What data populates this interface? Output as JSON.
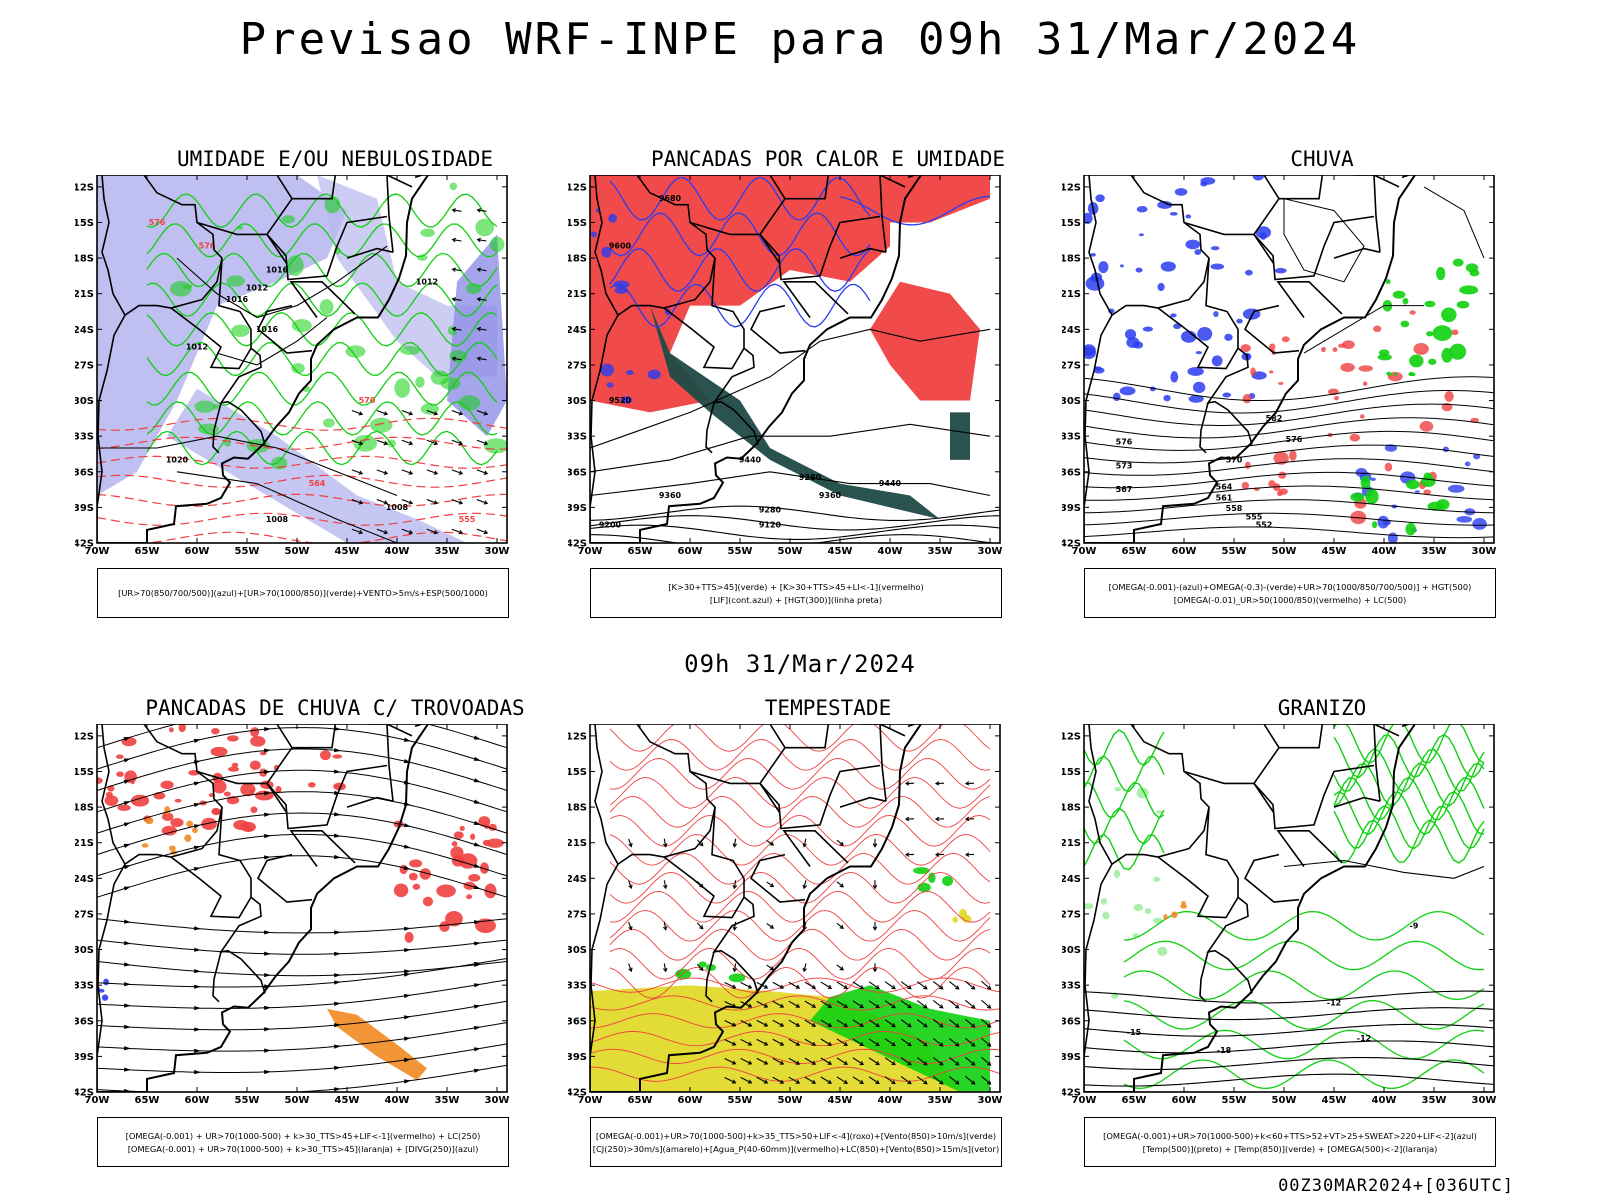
{
  "title": "Previsao WRF-INPE  para 09h 31/Mar/2024",
  "subtitle": "09h 31/Mar/2024",
  "footer": "00Z30MAR2024+[036UTC]",
  "colors": {
    "red": "#f04040",
    "blue": "#2a3cf0",
    "green": "#10d010",
    "lavender": "#b8b8f0",
    "orange": "#f08a20",
    "yellow": "#e0d820",
    "darkteal": "#1f4a46",
    "black": "#000000"
  },
  "axes": {
    "lat_labels": [
      "12S",
      "15S",
      "18S",
      "21S",
      "24S",
      "27S",
      "30S",
      "33S",
      "36S",
      "39S",
      "42S"
    ],
    "lon_labels": [
      "70W",
      "65W",
      "60W",
      "55W",
      "50W",
      "45W",
      "40W",
      "35W",
      "30W"
    ]
  },
  "panels": [
    {
      "title": "UMIDADE E/OU NEBULOSIDADE",
      "legend": [
        "[UR>70(850/700/500)](azul)+[UR>70(1000/850)](verde)+VENTO>5m/s+ESP(500/1000)"
      ]
    },
    {
      "title": "PANCADAS POR CALOR E UMIDADE",
      "legend": [
        "[K>30+TTS>45](verde) + [K>30+TTS>45+LI<-1](vermelho)",
        "[LIF](cont.azul) + [HGT(300)](linha preta)"
      ]
    },
    {
      "title": "CHUVA",
      "legend": [
        "[OMEGA(-0.001)-(azul)+OMEGA(-0.3)-(verde)+UR>70(1000/850/700/500)] + HGT(500)",
        "[OMEGA(-0.01)_UR>50(1000/850)(vermelho) + LC(500)"
      ]
    },
    {
      "title": "PANCADAS DE CHUVA C/ TROVOADAS",
      "legend": [
        "[OMEGA(-0.001) + UR>70(1000-500) + k>30_TTS>45+LIF<-1](vermelho) + LC(250)",
        "[OMEGA(-0.001) + UR>70(1000-500) + k>30_TTS>45](laranja) + [DIVG(250)](azul)"
      ]
    },
    {
      "title": "TEMPESTADE",
      "legend": [
        "[OMEGA(-0.001)+UR>70(1000-500)+k>35_TTS>50+LIF<-4](roxo)+[Vento(850)>10m/s](verde)",
        "[CJ(250)>30m/s](amarelo)+[Agua_P(40-60mm)](vermelho)+LC(850)+[Vento(850)>15m/s](vetor)"
      ]
    },
    {
      "title": "GRANIZO",
      "legend": [
        "[OMEGA(-0.001)+UR>70(1000-500)+k<60+TTS>52+VT>25+SWEAT>220+LIF<-2](azul)",
        "[Temp(500)](preto) + [Temp(850)](verde) + [OMEGA(500)<-2](laranja)"
      ]
    }
  ],
  "contour_labels": {
    "p1": [
      "1012",
      "1016",
      "1016",
      "1012",
      "1016",
      "1012",
      "1020",
      "1008",
      "1008",
      "576",
      "576",
      "570",
      "564",
      "555"
    ],
    "p2": [
      "9680",
      "9600",
      "9520",
      "9440",
      "9440",
      "9360",
      "9360",
      "9280",
      "9200",
      "9120",
      "9280"
    ],
    "p3": [
      "582",
      "576",
      "576",
      "573",
      "570",
      "567",
      "564",
      "561",
      "558",
      "555",
      "552"
    ],
    "p6": [
      "-12",
      "-15",
      "-18",
      "-12",
      "-9"
    ]
  }
}
